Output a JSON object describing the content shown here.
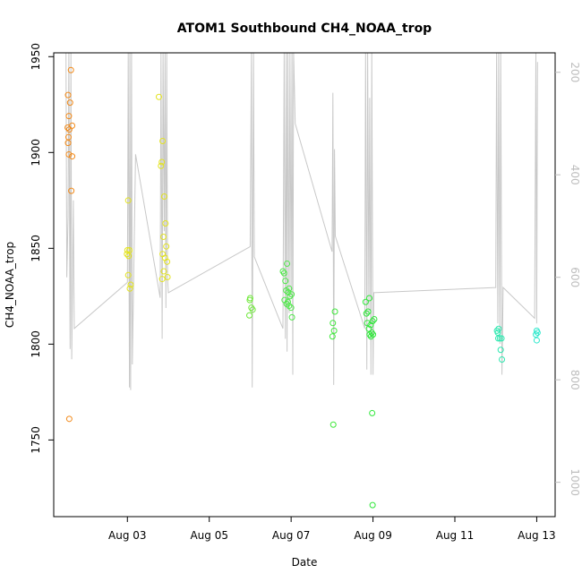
{
  "chart_data": {
    "type": "scatter",
    "title": "ATOM1 Southbound CH4_NOAA_trop",
    "xlabel": "Date",
    "ylabel": "CH4_NOAA_trop",
    "x_unit": "days since Aug 01",
    "x_ticks": [
      {
        "value": 2,
        "label": "Aug 03"
      },
      {
        "value": 4,
        "label": "Aug 05"
      },
      {
        "value": 6,
        "label": "Aug 07"
      },
      {
        "value": 8,
        "label": "Aug 09"
      },
      {
        "value": 10,
        "label": "Aug 11"
      },
      {
        "value": 12,
        "label": "Aug 13"
      }
    ],
    "y_ticks": [
      1750,
      1800,
      1850,
      1900,
      1950
    ],
    "y2_ticks": [
      200,
      400,
      600,
      800,
      1000
    ],
    "xlim": [
      0.2,
      12.45
    ],
    "ylim": [
      1710,
      1952
    ],
    "y2lim": [
      1067,
      162
    ],
    "grid": false,
    "colors": {
      "pressure_line": "#c8c8c8",
      "axis": "#000000",
      "right_axis": "#bebebe"
    },
    "points": [
      {
        "x": 0.62,
        "y": 1943,
        "c": "#f28a1a"
      },
      {
        "x": 0.55,
        "y": 1930,
        "c": "#f28a1a"
      },
      {
        "x": 0.6,
        "y": 1926,
        "c": "#f28a1a"
      },
      {
        "x": 0.57,
        "y": 1919,
        "c": "#f28a1a"
      },
      {
        "x": 0.65,
        "y": 1914,
        "c": "#f28a1a"
      },
      {
        "x": 0.54,
        "y": 1913,
        "c": "#f28a1a"
      },
      {
        "x": 0.58,
        "y": 1912,
        "c": "#f28a1a"
      },
      {
        "x": 0.56,
        "y": 1908,
        "c": "#f28a1a"
      },
      {
        "x": 0.55,
        "y": 1905,
        "c": "#f28a1a"
      },
      {
        "x": 0.57,
        "y": 1899,
        "c": "#f28a1a"
      },
      {
        "x": 0.65,
        "y": 1898,
        "c": "#f28a1a"
      },
      {
        "x": 0.63,
        "y": 1880,
        "c": "#f28a1a"
      },
      {
        "x": 0.58,
        "y": 1761,
        "c": "#f28a1a"
      },
      {
        "x": 2.02,
        "y": 1875,
        "c": "#e3e31f"
      },
      {
        "x": 2.0,
        "y": 1849,
        "c": "#e3e31f"
      },
      {
        "x": 2.05,
        "y": 1849,
        "c": "#e3e31f"
      },
      {
        "x": 1.99,
        "y": 1847,
        "c": "#e3e31f"
      },
      {
        "x": 2.03,
        "y": 1846,
        "c": "#e3e31f"
      },
      {
        "x": 2.02,
        "y": 1836,
        "c": "#e3e31f"
      },
      {
        "x": 2.08,
        "y": 1831,
        "c": "#e3e31f"
      },
      {
        "x": 2.06,
        "y": 1829,
        "c": "#e3e31f"
      },
      {
        "x": 2.77,
        "y": 1929,
        "c": "#e3e31f"
      },
      {
        "x": 2.86,
        "y": 1906,
        "c": "#e3e31f"
      },
      {
        "x": 2.84,
        "y": 1895,
        "c": "#e3e31f"
      },
      {
        "x": 2.82,
        "y": 1893,
        "c": "#e3e31f"
      },
      {
        "x": 2.9,
        "y": 1877,
        "c": "#e3e31f"
      },
      {
        "x": 2.93,
        "y": 1863,
        "c": "#e3e31f"
      },
      {
        "x": 2.88,
        "y": 1856,
        "c": "#e3e31f"
      },
      {
        "x": 2.95,
        "y": 1851,
        "c": "#e3e31f"
      },
      {
        "x": 2.86,
        "y": 1847,
        "c": "#e3e31f"
      },
      {
        "x": 2.92,
        "y": 1845,
        "c": "#e3e31f"
      },
      {
        "x": 2.97,
        "y": 1843,
        "c": "#e3e31f"
      },
      {
        "x": 2.89,
        "y": 1838,
        "c": "#e3e31f"
      },
      {
        "x": 2.98,
        "y": 1835,
        "c": "#e3e31f"
      },
      {
        "x": 2.85,
        "y": 1834,
        "c": "#e3e31f"
      },
      {
        "x": 5.0,
        "y": 1824,
        "c": "#6fe83a"
      },
      {
        "x": 4.99,
        "y": 1823,
        "c": "#6fe83a"
      },
      {
        "x": 5.03,
        "y": 1819,
        "c": "#6fe83a"
      },
      {
        "x": 5.06,
        "y": 1818,
        "c": "#6fe83a"
      },
      {
        "x": 4.98,
        "y": 1815,
        "c": "#6fe83a"
      },
      {
        "x": 5.8,
        "y": 1838,
        "c": "#4fe84a"
      },
      {
        "x": 5.83,
        "y": 1837,
        "c": "#4fe84a"
      },
      {
        "x": 5.9,
        "y": 1842,
        "c": "#4fe84a"
      },
      {
        "x": 5.86,
        "y": 1833,
        "c": "#4fe84a"
      },
      {
        "x": 5.95,
        "y": 1829,
        "c": "#4fe84a"
      },
      {
        "x": 5.88,
        "y": 1828,
        "c": "#4fe84a"
      },
      {
        "x": 5.93,
        "y": 1827,
        "c": "#4fe84a"
      },
      {
        "x": 6.01,
        "y": 1826,
        "c": "#4fe84a"
      },
      {
        "x": 5.97,
        "y": 1825,
        "c": "#4fe84a"
      },
      {
        "x": 5.84,
        "y": 1823,
        "c": "#4fe84a"
      },
      {
        "x": 5.92,
        "y": 1822,
        "c": "#4fe84a"
      },
      {
        "x": 5.89,
        "y": 1821,
        "c": "#4fe84a"
      },
      {
        "x": 5.95,
        "y": 1820,
        "c": "#4fe84a"
      },
      {
        "x": 6.0,
        "y": 1819,
        "c": "#4fe84a"
      },
      {
        "x": 6.02,
        "y": 1814,
        "c": "#4fe84a"
      },
      {
        "x": 7.07,
        "y": 1817,
        "c": "#3ee83a"
      },
      {
        "x": 7.02,
        "y": 1811,
        "c": "#3ee83a"
      },
      {
        "x": 7.05,
        "y": 1807,
        "c": "#3ee83a"
      },
      {
        "x": 7.01,
        "y": 1804,
        "c": "#3ee83a"
      },
      {
        "x": 7.03,
        "y": 1758,
        "c": "#3ee83a"
      },
      {
        "x": 7.82,
        "y": 1822,
        "c": "#2fe83a"
      },
      {
        "x": 7.91,
        "y": 1824,
        "c": "#2fe83a"
      },
      {
        "x": 7.88,
        "y": 1817,
        "c": "#2fe83a"
      },
      {
        "x": 7.84,
        "y": 1816,
        "c": "#2fe83a"
      },
      {
        "x": 8.03,
        "y": 1813,
        "c": "#2fe83a"
      },
      {
        "x": 7.99,
        "y": 1812,
        "c": "#2fe83a"
      },
      {
        "x": 7.86,
        "y": 1811,
        "c": "#2fe83a"
      },
      {
        "x": 7.94,
        "y": 1810,
        "c": "#2fe83a"
      },
      {
        "x": 7.9,
        "y": 1808,
        "c": "#2fe83a"
      },
      {
        "x": 7.97,
        "y": 1806,
        "c": "#2fe83a"
      },
      {
        "x": 7.92,
        "y": 1805,
        "c": "#2fe83a"
      },
      {
        "x": 8.0,
        "y": 1805,
        "c": "#2fe83a"
      },
      {
        "x": 7.95,
        "y": 1804,
        "c": "#2fe83a"
      },
      {
        "x": 7.98,
        "y": 1764,
        "c": "#2fe83a"
      },
      {
        "x": 7.99,
        "y": 1716,
        "c": "#2fe83a"
      },
      {
        "x": 11.03,
        "y": 1807,
        "c": "#2ee8b0"
      },
      {
        "x": 11.07,
        "y": 1808,
        "c": "#2ee8b0"
      },
      {
        "x": 11.05,
        "y": 1806,
        "c": "#2ee8b0"
      },
      {
        "x": 11.1,
        "y": 1803,
        "c": "#2ee8b0"
      },
      {
        "x": 11.06,
        "y": 1803,
        "c": "#2ee8b0"
      },
      {
        "x": 11.14,
        "y": 1803,
        "c": "#2ee8b0"
      },
      {
        "x": 11.12,
        "y": 1797,
        "c": "#2ee8b0"
      },
      {
        "x": 11.15,
        "y": 1792,
        "c": "#2ee8b0"
      },
      {
        "x": 12.0,
        "y": 1807,
        "c": "#2ee8cc"
      },
      {
        "x": 12.02,
        "y": 1806,
        "c": "#2ee8cc"
      },
      {
        "x": 11.98,
        "y": 1805,
        "c": "#2ee8cc"
      },
      {
        "x": 12.0,
        "y": 1802,
        "c": "#2ee8cc"
      }
    ],
    "pressure_track": {
      "y_axis": "right",
      "points": [
        [
          0.5,
          130
        ],
        [
          0.52,
          600
        ],
        [
          0.55,
          480
        ],
        [
          0.57,
          130
        ],
        [
          0.6,
          740
        ],
        [
          0.62,
          160
        ],
        [
          0.64,
          760
        ],
        [
          0.67,
          520
        ],
        [
          0.68,
          450
        ],
        [
          0.7,
          700
        ],
        [
          2.0,
          610
        ],
        [
          2.02,
          120
        ],
        [
          2.05,
          815
        ],
        [
          2.06,
          130
        ],
        [
          2.08,
          820
        ],
        [
          2.1,
          140
        ],
        [
          2.12,
          770
        ],
        [
          2.2,
          360
        ],
        [
          2.8,
          640
        ],
        [
          2.82,
          150
        ],
        [
          2.85,
          720
        ],
        [
          2.87,
          130
        ],
        [
          2.9,
          510
        ],
        [
          2.92,
          150
        ],
        [
          2.94,
          660
        ],
        [
          2.96,
          150
        ],
        [
          2.98,
          600
        ],
        [
          3.0,
          630
        ],
        [
          5.0,
          540
        ],
        [
          5.03,
          130
        ],
        [
          5.05,
          815
        ],
        [
          5.08,
          120
        ],
        [
          5.1,
          560
        ],
        [
          5.8,
          700
        ],
        [
          5.83,
          130
        ],
        [
          5.86,
          720
        ],
        [
          5.88,
          130
        ],
        [
          5.9,
          745
        ],
        [
          5.92,
          120
        ],
        [
          5.95,
          670
        ],
        [
          5.97,
          130
        ],
        [
          6.0,
          640
        ],
        [
          6.02,
          120
        ],
        [
          6.04,
          790
        ],
        [
          6.06,
          130
        ],
        [
          6.1,
          300
        ],
        [
          7.0,
          550
        ],
        [
          7.02,
          240
        ],
        [
          7.04,
          810
        ],
        [
          7.06,
          350
        ],
        [
          7.08,
          520
        ],
        [
          7.8,
          700
        ],
        [
          7.82,
          150
        ],
        [
          7.85,
          780
        ],
        [
          7.87,
          140
        ],
        [
          7.9,
          670
        ],
        [
          7.92,
          250
        ],
        [
          7.95,
          790
        ],
        [
          7.97,
          130
        ],
        [
          8.0,
          790
        ],
        [
          8.02,
          630
        ],
        [
          11.0,
          620
        ],
        [
          11.02,
          130
        ],
        [
          11.05,
          690
        ],
        [
          11.07,
          140
        ],
        [
          11.1,
          730
        ],
        [
          11.12,
          150
        ],
        [
          11.15,
          790
        ],
        [
          11.18,
          620
        ],
        [
          11.95,
          680
        ],
        [
          11.98,
          130
        ],
        [
          12.0,
          690
        ],
        [
          12.02,
          180
        ]
      ]
    }
  }
}
